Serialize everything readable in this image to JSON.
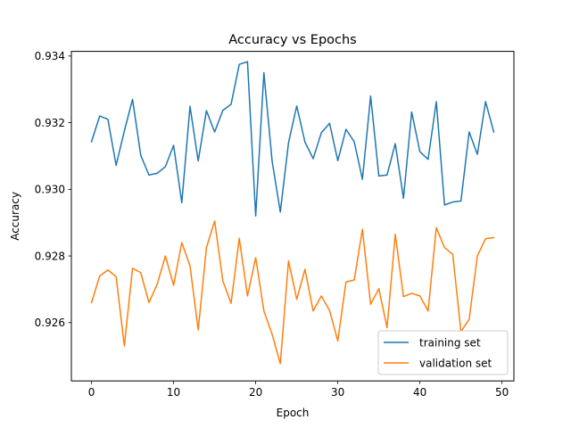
{
  "chart_data": {
    "type": "line",
    "title": "Accuracy vs Epochs",
    "xlabel": "Epoch",
    "ylabel": "Accuracy",
    "xlim": [
      -2.45,
      51.45
    ],
    "ylim": [
      0.92425,
      0.93414
    ],
    "xticks": [
      0,
      10,
      20,
      30,
      40,
      50
    ],
    "yticks": [
      0.926,
      0.928,
      0.93,
      0.932,
      0.934
    ],
    "ytick_labels": [
      "0.926",
      "0.928",
      "0.930",
      "0.932",
      "0.934"
    ],
    "grid": false,
    "legend_position": "lower-right",
    "series": [
      {
        "name": "training set",
        "color": "#1f77b4",
        "x": [
          0,
          1,
          2,
          3,
          4,
          5,
          6,
          7,
          8,
          9,
          10,
          11,
          12,
          13,
          14,
          15,
          16,
          17,
          18,
          19,
          20,
          21,
          22,
          23,
          24,
          25,
          26,
          27,
          28,
          29,
          30,
          31,
          32,
          33,
          34,
          35,
          36,
          37,
          38,
          39,
          40,
          41,
          42,
          43,
          44,
          45,
          46,
          47,
          48,
          49
        ],
        "values": [
          0.93143,
          0.9322,
          0.9321,
          0.93072,
          0.93175,
          0.9327,
          0.93102,
          0.93043,
          0.93048,
          0.93068,
          0.93132,
          0.9296,
          0.93249,
          0.93085,
          0.93236,
          0.93172,
          0.93237,
          0.93255,
          0.93375,
          0.93383,
          0.9292,
          0.9335,
          0.93085,
          0.92932,
          0.9314,
          0.9325,
          0.93142,
          0.93092,
          0.9317,
          0.93198,
          0.93086,
          0.9318,
          0.93143,
          0.9303,
          0.9328,
          0.9304,
          0.93043,
          0.93137,
          0.92973,
          0.93232,
          0.93113,
          0.9309,
          0.93263,
          0.92953,
          0.92962,
          0.92965,
          0.93172,
          0.93105,
          0.93263,
          0.93172
        ]
      },
      {
        "name": "validation set",
        "color": "#ff7f0e",
        "x": [
          0,
          1,
          2,
          3,
          4,
          5,
          6,
          7,
          8,
          9,
          10,
          11,
          12,
          13,
          14,
          15,
          16,
          17,
          18,
          19,
          20,
          21,
          22,
          23,
          24,
          25,
          26,
          27,
          28,
          29,
          30,
          31,
          32,
          33,
          34,
          35,
          36,
          37,
          38,
          39,
          40,
          41,
          42,
          43,
          44,
          45,
          46,
          47,
          48,
          49
        ],
        "values": [
          0.9266,
          0.9274,
          0.92758,
          0.92738,
          0.9253,
          0.92763,
          0.9275,
          0.9266,
          0.92715,
          0.928,
          0.92712,
          0.9284,
          0.9277,
          0.92578,
          0.92825,
          0.92905,
          0.92725,
          0.92658,
          0.92853,
          0.9268,
          0.92795,
          0.92635,
          0.92565,
          0.92477,
          0.92785,
          0.9267,
          0.9276,
          0.92635,
          0.9268,
          0.92636,
          0.92545,
          0.92722,
          0.92728,
          0.9288,
          0.92655,
          0.92702,
          0.92585,
          0.92865,
          0.92678,
          0.92688,
          0.9268,
          0.92635,
          0.92885,
          0.92825,
          0.92805,
          0.92573,
          0.9261,
          0.928,
          0.92852,
          0.92855
        ]
      }
    ]
  }
}
